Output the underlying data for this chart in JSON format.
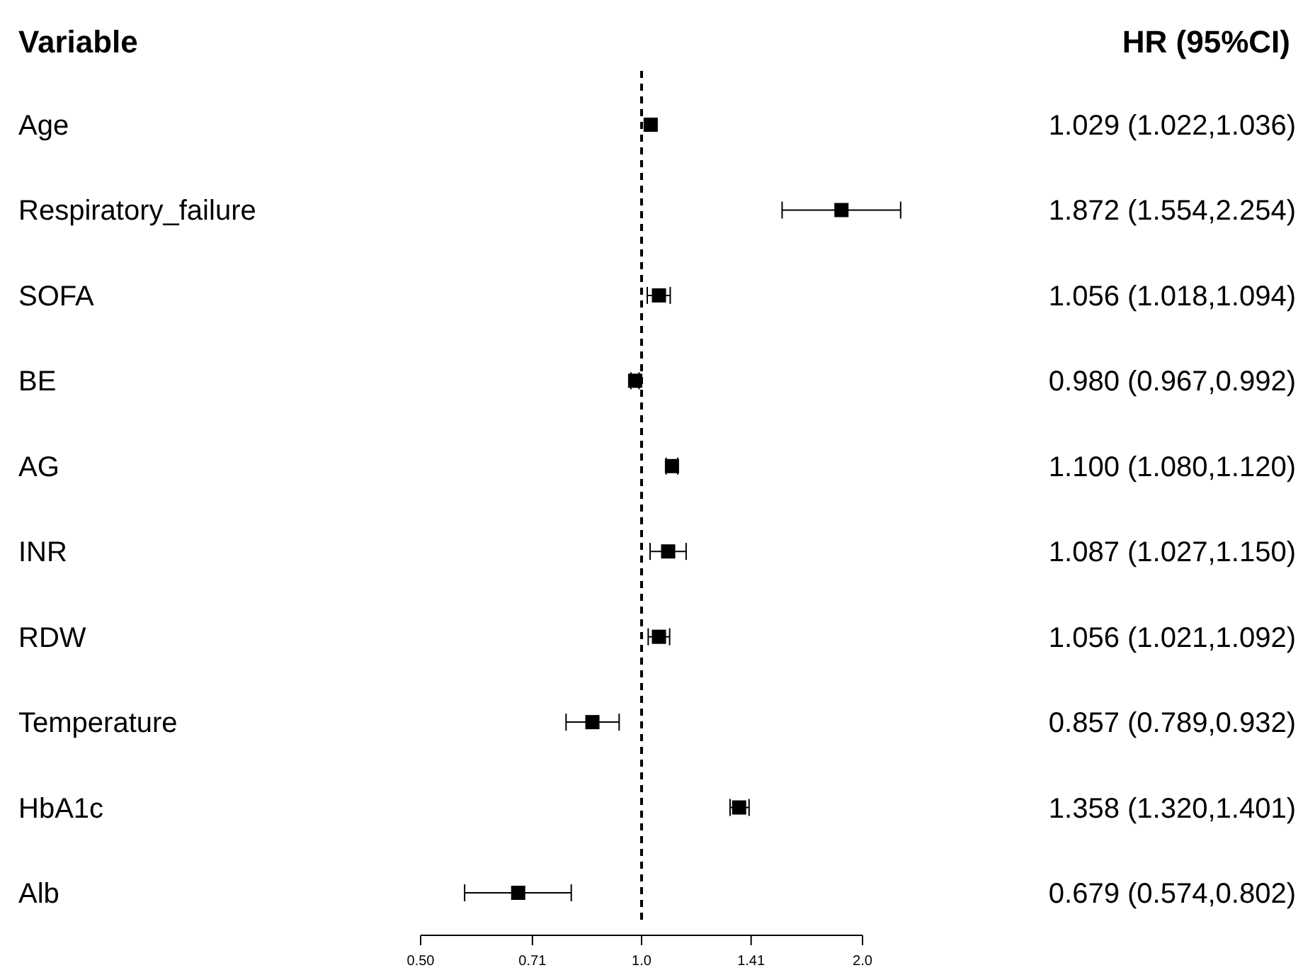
{
  "chart_data": {
    "type": "scatter",
    "orientation": "horizontal",
    "ylabel": "Variable",
    "annotations": [
      "HR (95%CI)"
    ],
    "categories": [
      "Age",
      "Respiratory_failure",
      "SOFA",
      "BE",
      "AG",
      "INR",
      "RDW",
      "Temperature",
      "HbA1c",
      "Alb"
    ],
    "values": [
      1.029,
      1.872,
      1.056,
      0.98,
      1.1,
      1.087,
      1.056,
      0.857,
      1.358,
      0.679
    ],
    "errors": [
      null,
      [
        1.554,
        2.254
      ],
      [
        1.018,
        1.094
      ],
      [
        0.967,
        0.992
      ],
      [
        1.08,
        1.12
      ],
      [
        1.027,
        1.15
      ],
      [
        1.021,
        1.092
      ],
      [
        0.789,
        0.932
      ],
      [
        1.32,
        1.401
      ],
      [
        0.574,
        0.802
      ]
    ],
    "value_labels": [
      "1.029 (1.022,1.036)",
      "1.872 (1.554,2.254)",
      "1.056 (1.018,1.094)",
      "0.980 (0.967,0.992)",
      "1.100 (1.080,1.120)",
      "1.087 (1.027,1.150)",
      "1.056 (1.021,1.092)",
      "0.857 (0.789,0.932)",
      "1.358 (1.320,1.401)",
      "0.679 (0.574,0.802)"
    ],
    "color": "#000000",
    "marker": "square",
    "log": "x",
    "xlim": [
      0.5,
      2.0
    ],
    "xticks": [
      {
        "value": 0.5,
        "label": "0.50"
      },
      {
        "value": 0.71,
        "label": "0.71"
      },
      {
        "value": 1.0,
        "label": "1.0"
      },
      {
        "value": 1.41,
        "label": "1.41"
      },
      {
        "value": 2.0,
        "label": "2.0"
      }
    ],
    "ref_lines": [
      {
        "axis": "x",
        "value": 1.0,
        "line_style": "dashed"
      }
    ],
    "grid": false
  }
}
